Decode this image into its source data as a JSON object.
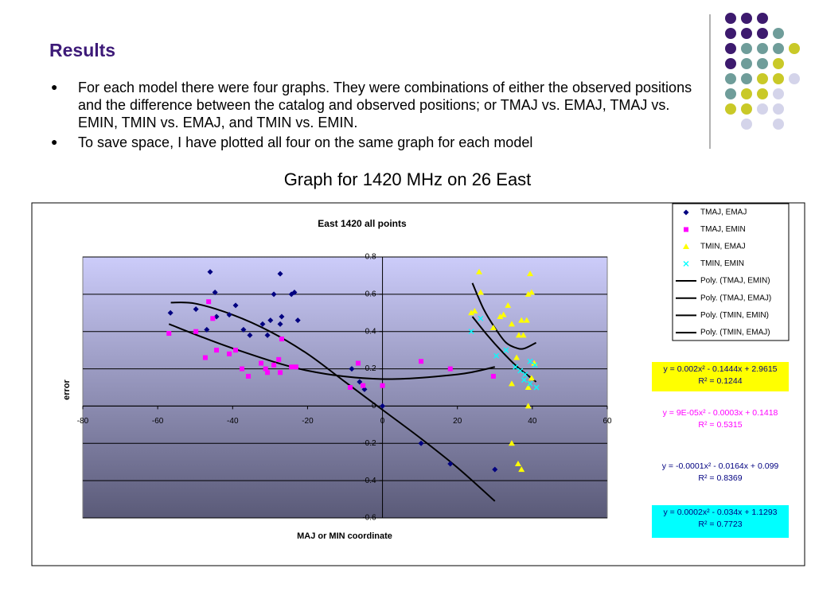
{
  "header": {
    "title": "Results"
  },
  "bullets": [
    "For each model there were four graphs. They were combinations of either the observed positions and the difference between the catalog and observed positions; or TMAJ vs. EMAJ, TMAJ vs. EMIN, TMIN vs. EMAJ, and TMIN vs.  EMIN.",
    "To save space, I have plotted all four on the same graph for each model"
  ],
  "caption": "Graph for 1420 MHz on 26 East",
  "chart_data": {
    "type": "scatter",
    "title": "East 1420 all points",
    "x_label": "MAJ or MIN coordinate",
    "y_label": "error",
    "xlim": [
      -80,
      60
    ],
    "xticks": [
      -80,
      -60,
      -40,
      -20,
      0,
      20,
      40,
      60
    ],
    "ylim": [
      -0.6,
      0.8
    ],
    "yticks": [
      -0.6,
      -0.4,
      -0.2,
      0,
      0.2,
      0.4,
      0.6,
      0.8
    ],
    "grid": true,
    "series": [
      {
        "name": "TMAJ, EMAJ",
        "color": "#000080",
        "marker": "diamond",
        "x": [
          -46.0,
          -27.3,
          -44.7,
          -23.5,
          -24.3,
          -29.0,
          -49.8,
          -39.2,
          -56.6,
          -44.3,
          -40.9,
          -29.9,
          -26.9,
          -32.0,
          -27.3,
          -37.1,
          -35.4,
          -30.7,
          -46.9,
          -22.6,
          -8.2,
          -6.1,
          -4.8,
          0,
          10.3,
          18.1,
          30.0
        ],
        "values": [
          0.72,
          0.71,
          0.61,
          0.61,
          0.6,
          0.6,
          0.52,
          0.54,
          0.5,
          0.48,
          0.49,
          0.46,
          0.48,
          0.44,
          0.44,
          0.41,
          0.38,
          0.38,
          0.41,
          0.46,
          0.2,
          0.13,
          0.09,
          0,
          -0.2,
          -0.31,
          -0.34
        ]
      },
      {
        "name": "TMAJ, EMIN",
        "color": "#ff00ff",
        "marker": "square",
        "x": [
          -57.0,
          -49.8,
          -46.4,
          -45.3,
          -44.3,
          -47.3,
          -40.9,
          -39.2,
          -37.5,
          -35.8,
          -32.4,
          -31.2,
          -30.7,
          -29.0,
          -27.7,
          -26.9,
          -27.3,
          -24.3,
          -23.1,
          -8.6,
          -6.5,
          -5.2,
          0,
          10.3,
          18.1,
          29.6
        ],
        "values": [
          0.39,
          0.4,
          0.56,
          0.47,
          0.3,
          0.26,
          0.28,
          0.3,
          0.2,
          0.16,
          0.23,
          0.2,
          0.18,
          0.22,
          0.25,
          0.36,
          0.18,
          0.21,
          0.21,
          0.1,
          0.23,
          0.11,
          0.11,
          0.24,
          0.2,
          0.16
        ]
      },
      {
        "name": "TMIN, EMAJ",
        "color": "#ffff00",
        "marker": "triangle",
        "x": [
          25.8,
          39.4,
          26.2,
          39.8,
          38.9,
          33.5,
          23.7,
          24.6,
          31.4,
          32.3,
          34.5,
          37.1,
          38.5,
          36.4,
          37.6,
          29.6,
          35.8,
          40.5,
          38.9,
          34.5,
          39.8,
          38.9,
          34.5,
          36.2,
          37.1
        ],
        "values": [
          0.72,
          0.71,
          0.61,
          0.61,
          0.6,
          0.54,
          0.5,
          0.51,
          0.48,
          0.49,
          0.44,
          0.46,
          0.46,
          0.38,
          0.38,
          0.42,
          0.26,
          0.23,
          0.1,
          0.12,
          0.15,
          0,
          -0.2,
          -0.31,
          -0.34
        ]
      },
      {
        "name": "TMIN, EMIN",
        "color": "#00ffff",
        "marker": "x",
        "x": [
          23.7,
          26.2,
          30.4,
          33.0,
          35.5,
          36.8,
          38.1,
          39.4,
          40.7,
          39.4,
          41.1,
          37.8
        ],
        "values": [
          0.4,
          0.47,
          0.27,
          0.3,
          0.21,
          0.19,
          0.17,
          0.24,
          0.22,
          0.12,
          0.1,
          0.14
        ]
      }
    ],
    "trendlines": [
      {
        "name": "Poly. (TMAJ, EMIN)",
        "color": "#000000",
        "x": [
          -57,
          -40,
          -20,
          0,
          20,
          30
        ],
        "values": [
          0.44,
          0.31,
          0.19,
          0.145,
          0.17,
          0.21
        ]
      },
      {
        "name": "Poly. (TMAJ, EMAJ)",
        "color": "#000000",
        "x": [
          -56.5,
          -50,
          -40,
          -30,
          -20,
          -10,
          0,
          10,
          20,
          30
        ],
        "values": [
          0.555,
          0.55,
          0.49,
          0.4,
          0.28,
          0.13,
          -0.02,
          -0.17,
          -0.33,
          -0.51
        ]
      },
      {
        "name": "Poly. (TMIN, EMIN)",
        "color": "#000000",
        "x": [
          24,
          28,
          32,
          36,
          41
        ],
        "values": [
          0.48,
          0.38,
          0.29,
          0.21,
          0.13
        ]
      },
      {
        "name": "Poly. (TMIN, EMAJ)",
        "color": "#000000",
        "x": [
          24,
          27,
          30,
          33,
          36,
          38,
          41
        ],
        "values": [
          0.66,
          0.52,
          0.42,
          0.34,
          0.31,
          0.31,
          0.34
        ]
      }
    ],
    "annotations": [
      {
        "text": "y = 0.002x² - 0.1444x + 2.9615",
        "r2": "R² = 0.1244",
        "color": "#000080",
        "background": "#ffff00"
      },
      {
        "text": "y = 9E-05x² - 0.0003x + 0.1418",
        "r2": "R² = 0.5315",
        "color": "#ff00ff",
        "background": "#ffffff"
      },
      {
        "text": "y = -0.0001x² - 0.0164x + 0.099",
        "r2": "R² = 0.8369",
        "color": "#000080",
        "background": "#ffffff"
      },
      {
        "text": "y = 0.0002x² - 0.034x + 1.1293",
        "r2": "R² = 0.7723",
        "color": "#000080",
        "background": "#00ffff"
      }
    ]
  }
}
